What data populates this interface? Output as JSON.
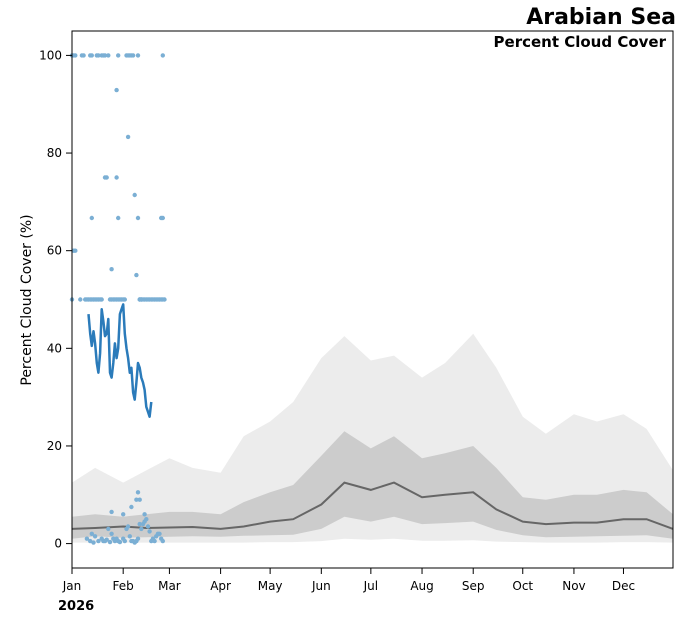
{
  "chart_data": {
    "type": "line",
    "title": "Arabian Sea",
    "subtitle": "Percent Cloud Cover",
    "xlabel": "",
    "ylabel": "Percent Cloud Cover (%)",
    "year_label": "2026",
    "xlim": [
      "2026-01-01",
      "2026-12-31"
    ],
    "ylim": [
      -5,
      105
    ],
    "x_ticks": [
      {
        "date": "2026-01-01",
        "label": "Jan"
      },
      {
        "date": "2026-02-01",
        "label": "Feb"
      },
      {
        "date": "2026-03-01",
        "label": "Mar"
      },
      {
        "date": "2026-04-01",
        "label": "Apr"
      },
      {
        "date": "2026-05-01",
        "label": "May"
      },
      {
        "date": "2026-06-01",
        "label": "Jun"
      },
      {
        "date": "2026-07-01",
        "label": "Jul"
      },
      {
        "date": "2026-08-01",
        "label": "Aug"
      },
      {
        "date": "2026-09-01",
        "label": "Sep"
      },
      {
        "date": "2026-10-01",
        "label": "Oct"
      },
      {
        "date": "2026-11-01",
        "label": "Nov"
      },
      {
        "date": "2026-12-01",
        "label": "Dec"
      }
    ],
    "y_ticks": [
      0,
      20,
      40,
      60,
      80,
      100
    ],
    "grid": false,
    "colors": {
      "outer_band": "#ececec",
      "inner_band": "#cccccc",
      "median_line": "#666666",
      "current_line": "#2b7bba",
      "points": "#7bafd4"
    },
    "climatology": {
      "x": [
        "2026-01-01",
        "2026-01-15",
        "2026-02-01",
        "2026-02-15",
        "2026-03-01",
        "2026-03-15",
        "2026-04-01",
        "2026-04-15",
        "2026-05-01",
        "2026-05-15",
        "2026-06-01",
        "2026-06-15",
        "2026-07-01",
        "2026-07-15",
        "2026-08-01",
        "2026-08-15",
        "2026-09-01",
        "2026-09-15",
        "2026-10-01",
        "2026-10-15",
        "2026-11-01",
        "2026-11-15",
        "2026-12-01",
        "2026-12-15",
        "2026-12-31"
      ],
      "p90": [
        12.5,
        15.5,
        12.5,
        15.0,
        17.5,
        15.5,
        14.5,
        22.0,
        25.0,
        29.0,
        38.0,
        42.5,
        37.5,
        38.5,
        34.0,
        37.0,
        43.0,
        36.0,
        26.0,
        22.5,
        26.5,
        25.0,
        26.5,
        23.5,
        15.0
      ],
      "p75": [
        5.5,
        6.0,
        5.5,
        6.0,
        6.5,
        6.5,
        6.0,
        8.5,
        10.5,
        12.0,
        18.0,
        23.0,
        19.5,
        22.0,
        17.5,
        18.5,
        20.0,
        15.5,
        9.5,
        9.0,
        10.0,
        10.0,
        11.0,
        10.5,
        6.0
      ],
      "median": [
        3.0,
        3.2,
        3.5,
        3.2,
        3.3,
        3.4,
        3.0,
        3.5,
        4.5,
        5.0,
        8.0,
        12.5,
        11.0,
        12.5,
        9.5,
        10.0,
        10.5,
        7.0,
        4.5,
        4.0,
        4.3,
        4.3,
        5.0,
        5.0,
        3.0
      ],
      "p25": [
        1.0,
        1.5,
        1.2,
        1.3,
        1.4,
        1.5,
        1.4,
        1.6,
        1.7,
        1.8,
        3.0,
        5.5,
        4.5,
        5.5,
        4.0,
        4.2,
        4.5,
        2.8,
        1.7,
        1.3,
        1.4,
        1.5,
        1.6,
        1.7,
        1.0
      ],
      "p10": [
        0.2,
        0.2,
        0.2,
        0.2,
        0.2,
        0.2,
        0.2,
        0.2,
        0.3,
        0.3,
        0.5,
        1.0,
        0.8,
        1.0,
        0.6,
        0.6,
        0.7,
        0.4,
        0.3,
        0.2,
        0.2,
        0.2,
        0.3,
        0.3,
        0.2
      ]
    },
    "current_series": {
      "x": [
        "2026-01-11",
        "2026-01-12",
        "2026-01-13",
        "2026-01-14",
        "2026-01-15",
        "2026-01-16",
        "2026-01-17",
        "2026-01-18",
        "2026-01-19",
        "2026-01-20",
        "2026-01-21",
        "2026-01-22",
        "2026-01-23",
        "2026-01-24",
        "2026-01-25",
        "2026-01-26",
        "2026-01-27",
        "2026-01-28",
        "2026-01-29",
        "2026-01-30",
        "2026-01-31",
        "2026-02-01",
        "2026-02-02",
        "2026-02-03",
        "2026-02-04",
        "2026-02-05",
        "2026-02-06",
        "2026-02-07",
        "2026-02-08",
        "2026-02-09",
        "2026-02-10",
        "2026-02-11",
        "2026-02-12",
        "2026-02-13",
        "2026-02-14",
        "2026-02-15",
        "2026-02-16",
        "2026-02-17",
        "2026-02-18",
        "2026-02-19",
        "2026-02-20",
        "2026-02-21",
        "2026-02-22"
      ],
      "values": [
        47,
        43,
        40.5,
        43.5,
        41,
        37,
        35,
        39,
        48,
        45.5,
        42.5,
        43,
        46,
        35,
        34,
        37,
        41,
        38,
        40,
        47,
        48,
        49,
        43,
        40,
        38,
        35,
        36,
        31,
        29.5,
        33,
        37,
        36,
        34,
        33,
        31.5,
        28,
        27,
        26,
        29,
        null,
        null,
        null,
        null
      ]
    },
    "daily_points": {
      "x": [
        "2026-01-01",
        "2026-01-02",
        "2026-01-03",
        "2026-01-07",
        "2026-01-08",
        "2026-01-12",
        "2026-01-13",
        "2026-01-16",
        "2026-01-17",
        "2026-01-19",
        "2026-01-20",
        "2026-01-21",
        "2026-01-23",
        "2026-01-29",
        "2026-02-03",
        "2026-02-04",
        "2026-02-05",
        "2026-02-06",
        "2026-02-07",
        "2026-02-10",
        "2026-02-25",
        "2026-01-28",
        "2026-02-04",
        "2026-01-21",
        "2026-01-22",
        "2026-01-28",
        "2026-02-08",
        "2026-01-13",
        "2026-01-29",
        "2026-02-10",
        "2026-02-24",
        "2026-02-25",
        "2026-01-02",
        "2026-01-03",
        "2026-01-25",
        "2026-02-09",
        "2026-01-01",
        "2026-01-06",
        "2026-01-09",
        "2026-01-10",
        "2026-01-11",
        "2026-01-12",
        "2026-01-13",
        "2026-01-14",
        "2026-01-15",
        "2026-01-16",
        "2026-01-17",
        "2026-01-18",
        "2026-01-19",
        "2026-01-24",
        "2026-01-25",
        "2026-01-26",
        "2026-01-27",
        "2026-01-28",
        "2026-01-29",
        "2026-01-30",
        "2026-01-31",
        "2026-02-01",
        "2026-02-02",
        "2026-02-11",
        "2026-02-12",
        "2026-02-13",
        "2026-02-14",
        "2026-02-15",
        "2026-02-16",
        "2026-02-17",
        "2026-02-18",
        "2026-02-19",
        "2026-02-20",
        "2026-02-21",
        "2026-02-22",
        "2026-02-23",
        "2026-02-24",
        "2026-02-25",
        "2026-02-26",
        "2026-02-11",
        "2026-02-12",
        "2026-01-25",
        "2026-02-06",
        "2026-02-01",
        "2026-02-09",
        "2026-02-10",
        "2026-02-11",
        "2026-02-14",
        "2026-01-10",
        "2026-01-12",
        "2026-01-13",
        "2026-01-15",
        "2026-01-17",
        "2026-01-19",
        "2026-01-20",
        "2026-01-22",
        "2026-01-23",
        "2026-01-25",
        "2026-01-26",
        "2026-01-27",
        "2026-01-28",
        "2026-01-29",
        "2026-01-30",
        "2026-02-01",
        "2026-02-03",
        "2026-02-04",
        "2026-02-05",
        "2026-02-06",
        "2026-02-07",
        "2026-02-08",
        "2026-02-09",
        "2026-02-10",
        "2026-02-11",
        "2026-02-12",
        "2026-02-13",
        "2026-02-14",
        "2026-02-15",
        "2026-02-16",
        "2026-02-17",
        "2026-02-18",
        "2026-02-19",
        "2026-02-20",
        "2026-02-21",
        "2026-02-22",
        "2026-02-23",
        "2026-02-24",
        "2026-02-25",
        "2026-01-14",
        "2026-01-21",
        "2026-01-24",
        "2026-02-02"
      ],
      "values": [
        100,
        100,
        100,
        100,
        100,
        100,
        100,
        100,
        100,
        100,
        100,
        100,
        100,
        100,
        100,
        100,
        100,
        100,
        100,
        100,
        100,
        92.9,
        83.3,
        75,
        75,
        75,
        71.4,
        66.7,
        66.7,
        66.7,
        66.7,
        66.7,
        60,
        60,
        56.2,
        55,
        50,
        50,
        50,
        50,
        50,
        50,
        50,
        50,
        50,
        50,
        50,
        50,
        50,
        50,
        50,
        50,
        50,
        50,
        50,
        50,
        50,
        50,
        50,
        50,
        50,
        50,
        50,
        50,
        50,
        50,
        50,
        50,
        50,
        50,
        50,
        50,
        50,
        50,
        50,
        50,
        50,
        6.5,
        7.5,
        6,
        9,
        10.5,
        9,
        6,
        1,
        0.5,
        2,
        1.5,
        0.5,
        1,
        0.5,
        0.8,
        3,
        2,
        1,
        0.5,
        1,
        0.5,
        0.3,
        1,
        3,
        3.5,
        1.5,
        0.5,
        0.5,
        0.2,
        0.5,
        1,
        4,
        3,
        4,
        4.5,
        5,
        3.5,
        2.5,
        0.5,
        1,
        0.5,
        1.5,
        2,
        2,
        1,
        0.5,
        0.2,
        0.5,
        0.3,
        0.5
      ]
    }
  }
}
